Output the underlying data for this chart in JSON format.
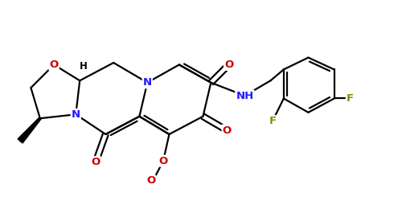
{
  "bg_color": "#ffffff",
  "bond_color": "#000000",
  "N_color": "#1a1aff",
  "O_color": "#cc0000",
  "F_color": "#8b8b00",
  "line_width": 1.6,
  "figsize": [
    5.0,
    2.45
  ],
  "dpi": 100,
  "xlim": [
    0,
    10
  ],
  "ylim": [
    0,
    4.9
  ]
}
